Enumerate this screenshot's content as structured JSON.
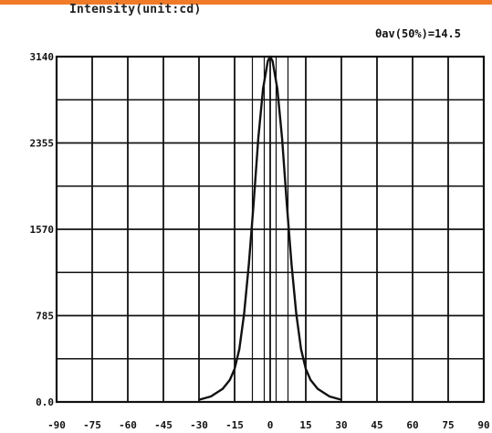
{
  "chart_data": {
    "type": "line",
    "title": "Intensity(unit:cd)",
    "annotation": "θav(50%)=14.5",
    "xlabel": "",
    "ylabel": "",
    "xlim": [
      -90,
      90
    ],
    "ylim": [
      0,
      3140
    ],
    "x_ticks": [
      -90,
      -75,
      -60,
      -45,
      -30,
      -15,
      0,
      15,
      30,
      45,
      60,
      75,
      90
    ],
    "y_ticks": [
      0,
      785,
      1570,
      2355,
      3140
    ],
    "y_tick_labels": [
      "0.0",
      "785",
      "1570",
      "2355",
      "3140"
    ],
    "grid": true,
    "extra_vertical_gridlines": [
      -7.5,
      -2.5,
      2.5,
      7.5
    ],
    "series": [
      {
        "x": [
          -30,
          -25,
          -20,
          -17,
          -15,
          -13,
          -11,
          -9,
          -7,
          -5,
          -3,
          -1,
          0,
          1,
          3,
          5,
          7,
          9,
          11,
          13,
          15,
          17,
          20,
          25,
          30
        ],
        "values": [
          20,
          50,
          120,
          200,
          300,
          480,
          800,
          1250,
          1800,
          2400,
          2850,
          3100,
          3140,
          3100,
          2850,
          2400,
          1800,
          1250,
          800,
          480,
          300,
          200,
          120,
          50,
          20
        ]
      }
    ]
  }
}
